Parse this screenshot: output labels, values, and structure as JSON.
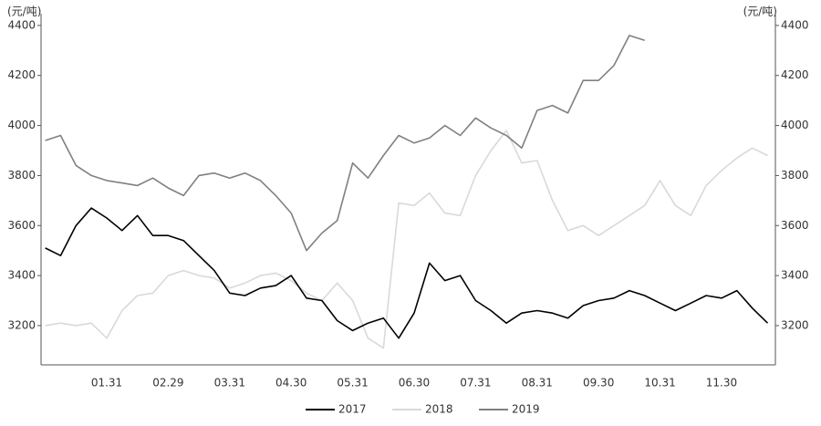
{
  "chart_data": {
    "type": "line",
    "y_unit_label": "(元/吨)",
    "y2_unit_label": "(元/吨)",
    "categories": [
      null,
      null,
      null,
      null,
      "01.31",
      null,
      null,
      null,
      "02.29",
      null,
      null,
      null,
      "03.31",
      null,
      null,
      null,
      "04.30",
      null,
      null,
      null,
      "05.31",
      null,
      null,
      null,
      "06.30",
      null,
      null,
      null,
      "07.31",
      null,
      null,
      null,
      "08.31",
      null,
      null,
      null,
      "09.30",
      null,
      null,
      null,
      "10.31",
      null,
      null,
      null,
      "11.30",
      null,
      null,
      null
    ],
    "series": [
      {
        "name": "2017",
        "color": "#000000",
        "values": [
          3510,
          3480,
          3600,
          3670,
          3630,
          3580,
          3640,
          3560,
          3560,
          3540,
          3480,
          3420,
          3330,
          3320,
          3350,
          3360,
          3400,
          3310,
          3300,
          3220,
          3180,
          3210,
          3230,
          3150,
          3250,
          3450,
          3380,
          3400,
          3300,
          3260,
          3210,
          3250,
          3260,
          3250,
          3230,
          3280,
          3300,
          3310,
          3340,
          3320,
          3290,
          3260,
          3290,
          3320,
          3310,
          3340,
          3270,
          3210
        ]
      },
      {
        "name": "2018",
        "color": "#d9d9d9",
        "values": [
          3200,
          3210,
          3200,
          3210,
          3150,
          3260,
          3320,
          3330,
          3400,
          3420,
          3400,
          3390,
          3350,
          3370,
          3400,
          3410,
          3380,
          3330,
          3300,
          3370,
          3300,
          3150,
          3110,
          3690,
          3680,
          3730,
          3650,
          3640,
          3800,
          3900,
          3980,
          3850,
          3860,
          3700,
          3580,
          3600,
          3560,
          3600,
          3640,
          3680,
          3780,
          3680,
          3640,
          3760,
          3820,
          3870,
          3910,
          3880
        ]
      },
      {
        "name": "2019",
        "color": "#808080",
        "values": [
          3940,
          3960,
          3840,
          3800,
          3780,
          3770,
          3760,
          3790,
          3750,
          3720,
          3800,
          3810,
          3790,
          3810,
          3780,
          3720,
          3650,
          3500,
          3570,
          3620,
          3850,
          3790,
          3880,
          3960,
          3930,
          3950,
          4000,
          3960,
          4030,
          3990,
          3960,
          3910,
          4060,
          4080,
          4050,
          4180,
          4180,
          4240,
          4360,
          4340,
          null,
          null,
          null,
          null,
          null,
          null,
          null,
          null
        ]
      }
    ],
    "ylim": [
      3043,
      4447
    ],
    "yticks": [
      3200,
      3400,
      3600,
      3800,
      4000,
      4200,
      4400
    ],
    "y2lim": [
      3043,
      4447
    ],
    "y2ticks": [
      3200,
      3400,
      3600,
      3800,
      4000,
      4200,
      4400
    ],
    "legend": "bottom"
  }
}
